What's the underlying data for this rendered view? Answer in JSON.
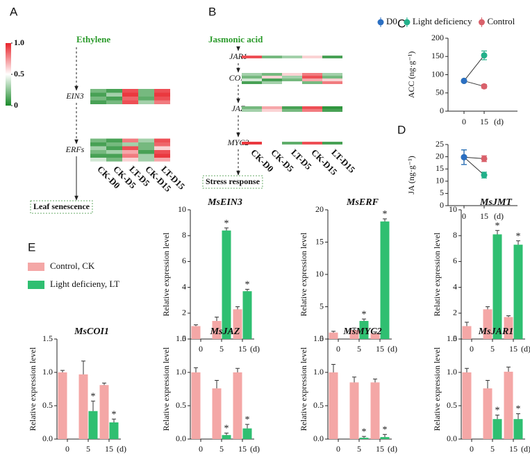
{
  "chart_data": [
    {
      "type": "heatmap",
      "label": "A",
      "pathway": "Ethylene",
      "output": "Leaf senescence",
      "columns": [
        "CK-D0",
        "CK-D5",
        "LT-D5",
        "CK-D15",
        "LT-D15"
      ],
      "colorbar_ticks": [
        {
          "value": 1,
          "label": "1.0"
        },
        0.5,
        0
      ],
      "colors": [
        "#1a8a2a",
        "#ffffff",
        "#e8232a"
      ],
      "groups": [
        {
          "name": "EIN3",
          "values": [
            [
              0.2,
              0.1,
              0.9,
              0.2,
              0.9
            ],
            [
              0.1,
              0.3,
              0.95,
              0.2,
              0.95
            ],
            [
              0.2,
              0.1,
              0.85,
              0.15,
              0.9
            ],
            [
              0.1,
              0.2,
              0.9,
              0.3,
              0.8
            ]
          ]
        },
        {
          "name": "ERFs",
          "values": [
            [
              0.2,
              0.1,
              0.8,
              0.3,
              0.9
            ],
            [
              0.1,
              0.2,
              0.3,
              0.2,
              0.85
            ],
            [
              0.3,
              0.1,
              0.9,
              0.2,
              0.6
            ],
            [
              0.2,
              0.3,
              0.7,
              0.1,
              0.9
            ],
            [
              0.1,
              0.1,
              0.8,
              0.3,
              0.95
            ],
            [
              0.4,
              0.2,
              0.6,
              0.3,
              0.7
            ]
          ]
        }
      ]
    },
    {
      "type": "heatmap",
      "label": "B",
      "pathway": "Jasmonic acid",
      "output": "Stress response",
      "columns": [
        "CK-D0",
        "CK-D5",
        "LT-D5",
        "CK-D15",
        "LT-D15"
      ],
      "colors": [
        "#1a8a2a",
        "#ffffff",
        "#e8232a"
      ],
      "groups": [
        {
          "name": "JAR1",
          "values": [
            [
              0.9,
              0.2,
              0.3,
              0.6,
              0.1
            ]
          ]
        },
        {
          "name": "COI1",
          "values": [
            [
              0.3,
              0.2,
              0.6,
              0.8,
              0.3
            ],
            [
              0.2,
              0.6,
              0.3,
              0.9,
              0.2
            ],
            [
              0.4,
              0.1,
              0.2,
              0.7,
              0.6
            ],
            [
              0.1,
              0.3,
              0.5,
              0.2,
              0.8
            ]
          ]
        },
        {
          "name": "JAZ",
          "values": [
            [
              0.2,
              0.7,
              0.1,
              0.9,
              0.05
            ],
            [
              0.3,
              0.6,
              0.2,
              0.8,
              0.1
            ]
          ]
        },
        {
          "name": "MYC2",
          "values": [
            [
              0.95,
              0.5,
              0.15,
              0.9,
              0.1
            ]
          ]
        }
      ]
    },
    {
      "type": "line",
      "label": "C",
      "y_label": "ACC (ng·g⁻¹)",
      "categories": [
        "0",
        "15"
      ],
      "x_unit": "(d)",
      "ylim": [
        0,
        200
      ],
      "yticks": [
        0,
        50,
        100,
        150,
        200
      ],
      "series": [
        {
          "name": "D0",
          "color": "#2b6fc2",
          "values": [
            83,
            null
          ],
          "errors": [
            3,
            null
          ]
        },
        {
          "name": "Light deficiency",
          "color": "#22b08a",
          "values": [
            83,
            153
          ],
          "errors": [
            3,
            12
          ]
        },
        {
          "name": "Control",
          "color": "#d9616b",
          "values": [
            83,
            68
          ],
          "errors": [
            3,
            5
          ]
        }
      ]
    },
    {
      "type": "line",
      "label": "D",
      "y_label": "JA (ng·g⁻¹)",
      "categories": [
        "0",
        "15"
      ],
      "x_unit": "(d)",
      "ylim": [
        0,
        25
      ],
      "yticks": [
        0,
        5,
        10,
        15,
        20,
        25
      ],
      "series": [
        {
          "color": "#2b6fc2",
          "values": [
            19.8,
            null
          ],
          "errors": [
            3,
            null
          ]
        },
        {
          "color": "#22b08a",
          "values": [
            19.8,
            12.5
          ],
          "errors": [
            3,
            1.2
          ]
        },
        {
          "color": "#d9616b",
          "values": [
            19.8,
            19.2
          ],
          "errors": [
            3,
            1.2
          ]
        }
      ]
    },
    {
      "type": "bar_grid",
      "label": "E",
      "y_label": "Relative expression level",
      "categories": [
        "0",
        "5",
        "15"
      ],
      "x_unit": "(d)",
      "series": [
        {
          "name": "Control, CK",
          "color": "#f4a7a6"
        },
        {
          "name": "Light deficieny, LT",
          "color": "#2fbf71"
        }
      ],
      "panels": [
        {
          "title": "MsEIN3",
          "ylim": [
            0,
            10
          ],
          "yticks": [
            0,
            2,
            4,
            6,
            8,
            10
          ],
          "values": [
            [
              1.0,
              1.4,
              2.3
            ],
            [
              null,
              8.4,
              3.7
            ]
          ],
          "errors": [
            [
              0.1,
              0.3,
              0.2
            ],
            [
              null,
              0.2,
              0.15
            ]
          ],
          "annotations": [
            null,
            "*",
            "*"
          ]
        },
        {
          "title": "MsERF",
          "ylim": [
            0,
            20
          ],
          "yticks": [
            0,
            5,
            10,
            15,
            20
          ],
          "values": [
            [
              1.0,
              1.4,
              0.9
            ],
            [
              null,
              2.8,
              18.2
            ]
          ],
          "errors": [
            [
              0.2,
              0.3,
              0.2
            ],
            [
              null,
              0.3,
              0.4
            ]
          ],
          "annotations": [
            null,
            "*",
            "*"
          ]
        },
        {
          "title": "MsJMT",
          "ylim": [
            0,
            10
          ],
          "yticks": [
            0,
            2,
            4,
            6,
            8,
            10
          ],
          "values": [
            [
              1.0,
              2.3,
              1.7
            ],
            [
              null,
              8.1,
              7.3
            ]
          ],
          "errors": [
            [
              0.3,
              0.2,
              0.1
            ],
            [
              null,
              0.3,
              0.3
            ]
          ],
          "annotations": [
            null,
            "*",
            "*"
          ]
        },
        {
          "title": "MsCOI1",
          "ylim": [
            0,
            1.5
          ],
          "yticks": [
            {
              "value": 0,
              "label": "0.0"
            },
            0.5,
            {
              "value": 1,
              "label": "1.0"
            },
            1.5
          ],
          "values": [
            [
              1.0,
              0.97,
              0.81
            ],
            [
              null,
              0.42,
              0.25
            ]
          ],
          "errors": [
            [
              0.03,
              0.2,
              0.03
            ],
            [
              null,
              0.15,
              0.05
            ]
          ],
          "annotations": [
            null,
            "*",
            "*"
          ]
        },
        {
          "title": "MsJAZ",
          "ylim": [
            0,
            1.5
          ],
          "yticks": [
            {
              "value": 0,
              "label": "0.0"
            },
            0.5,
            {
              "value": 1,
              "label": "1.0"
            },
            1.5
          ],
          "values": [
            [
              1.0,
              0.76,
              1.0
            ],
            [
              null,
              0.06,
              0.16
            ]
          ],
          "errors": [
            [
              0.07,
              0.12,
              0.06
            ],
            [
              null,
              0.03,
              0.06
            ]
          ],
          "annotations": [
            null,
            "*",
            "*"
          ]
        },
        {
          "title": "MsMYC2",
          "ylim": [
            0,
            1.5
          ],
          "yticks": [
            {
              "value": 0,
              "label": "0.0"
            },
            0.5,
            {
              "value": 1,
              "label": "1.0"
            },
            1.5
          ],
          "values": [
            [
              1.0,
              0.85,
              0.85
            ],
            [
              null,
              0.02,
              0.03
            ]
          ],
          "errors": [
            [
              0.12,
              0.08,
              0.05
            ],
            [
              null,
              0.02,
              0.04
            ]
          ],
          "annotations": [
            null,
            "*",
            "*"
          ]
        },
        {
          "title": "MsJAR1",
          "ylim": [
            0,
            1.5
          ],
          "yticks": [
            {
              "value": 0,
              "label": "0.0"
            },
            0.5,
            {
              "value": 1,
              "label": "1.0"
            },
            1.5
          ],
          "values": [
            [
              1.0,
              0.76,
              1.01
            ],
            [
              null,
              0.3,
              0.3
            ]
          ],
          "errors": [
            [
              0.06,
              0.12,
              0.07
            ],
            [
              null,
              0.06,
              0.08
            ]
          ],
          "annotations": [
            null,
            "*",
            "*"
          ]
        }
      ]
    }
  ]
}
